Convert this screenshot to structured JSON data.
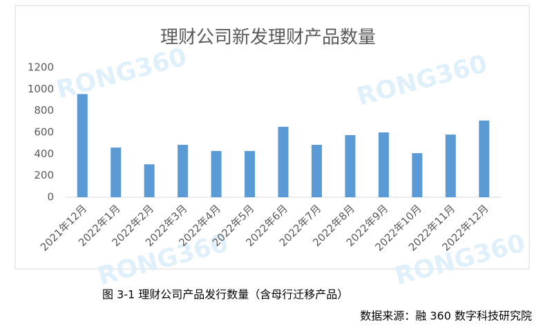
{
  "chart_data": {
    "type": "bar",
    "title": "理财公司新发理财产品数量",
    "categories": [
      "2021年12月",
      "2022年1月",
      "2022年2月",
      "2022年3月",
      "2022年4月",
      "2022年5月",
      "2022年6月",
      "2022年7月",
      "2022年8月",
      "2022年9月",
      "2022年10月",
      "2022年11月",
      "2022年12月"
    ],
    "values": [
      955,
      460,
      305,
      485,
      428,
      428,
      652,
      485,
      575,
      600,
      408,
      580,
      710
    ],
    "color": "#5b9bd5",
    "ylim": [
      0,
      1200
    ],
    "yticks": [
      0,
      200,
      400,
      600,
      800,
      1000,
      1200
    ],
    "grid": false,
    "watermark": "RONG360",
    "caption": "图 3-1 理财公司产品发行数量（含母行迁移产品）",
    "source": "数据来源：融 360 数字科技研究院"
  }
}
